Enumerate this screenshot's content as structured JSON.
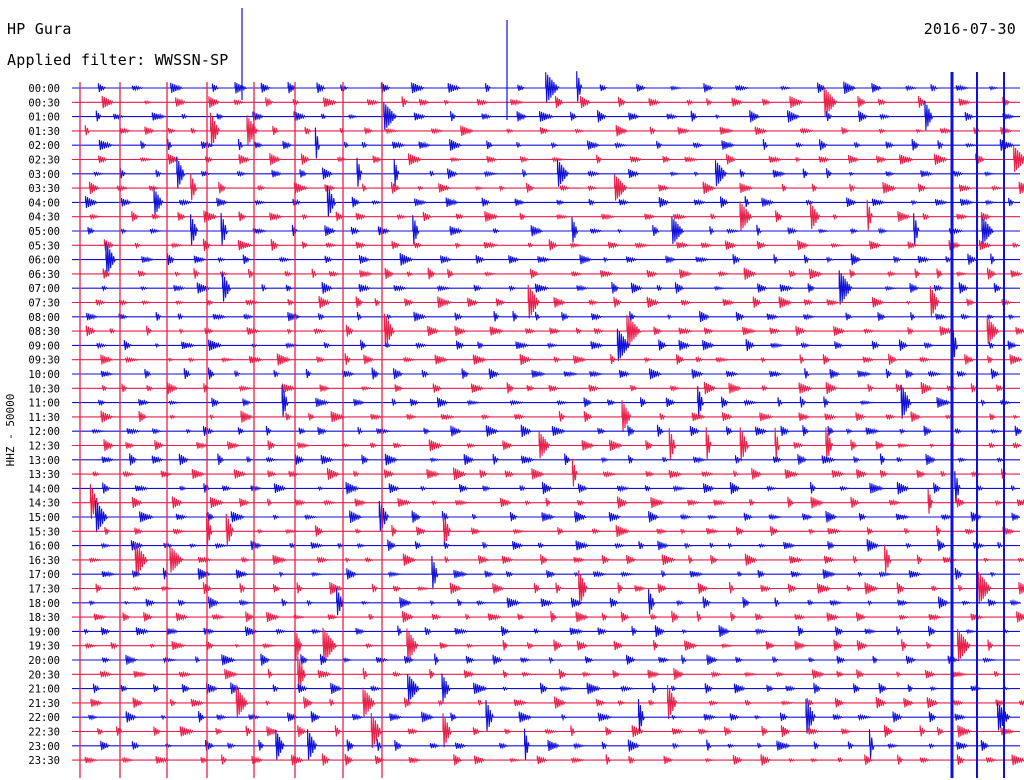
{
  "header": {
    "station": "HP Gura",
    "date": "2016-07-30",
    "filter": "Applied filter: WWSSN-SP"
  },
  "chart_data": {
    "type": "line",
    "title": "HP Gura",
    "subtitle": "Applied filter: WWSSN-SP",
    "date": "2016-07-30",
    "ylabel": "HHZ - 50000",
    "xlabel": "",
    "row_labels": [
      "00:00",
      "00:30",
      "01:00",
      "01:30",
      "02:00",
      "02:30",
      "03:00",
      "03:30",
      "04:00",
      "04:30",
      "05:00",
      "05:30",
      "06:00",
      "06:30",
      "07:00",
      "07:30",
      "08:00",
      "08:30",
      "09:00",
      "09:30",
      "10:00",
      "10:30",
      "11:00",
      "11:30",
      "12:00",
      "12:30",
      "13:00",
      "13:30",
      "14:00",
      "14:30",
      "15:00",
      "15:30",
      "16:00",
      "16:30",
      "17:00",
      "17:30",
      "18:00",
      "18:30",
      "19:00",
      "19:30",
      "20:00",
      "20:30",
      "21:00",
      "21:30",
      "22:00",
      "22:30",
      "23:00",
      "23:30"
    ],
    "series_colors": [
      "#1010d8",
      "#e8204a"
    ],
    "grid": false,
    "legend": "none"
  }
}
